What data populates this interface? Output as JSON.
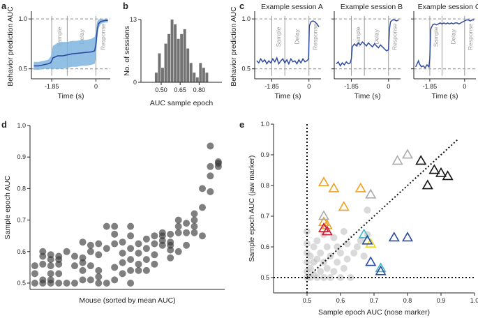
{
  "colors": {
    "blue_line": "#2f4a9c",
    "blue_band": "#7fb5df",
    "bar_gray": "#737373",
    "axis": "#222222",
    "guide_gray": "#9a9a9a",
    "dashed": "#8a8a8a",
    "orange": "#f0a020",
    "red": "#d01830",
    "cyan": "#3cb8c8",
    "yellow": "#e8d820",
    "navy": "#2a4a9c",
    "black": "#111111",
    "light_gray": "#aaaaaa",
    "mid_gray": "#888888"
  },
  "chart_data": [
    {
      "panel": "a",
      "type": "line",
      "title": "",
      "xlabel": "Time (s)",
      "ylabel": "Behavior prediction AUC",
      "xlim": [
        -2.7,
        0.6
      ],
      "ylim": [
        0.4,
        1.05
      ],
      "x_ticks": [
        -1.85,
        0
      ],
      "x_tick_labels": [
        "-1.85",
        "0"
      ],
      "y_ticks": [
        0.5,
        1.0
      ],
      "y_tick_labels": [
        "0.5",
        "1.0"
      ],
      "epoch_lines": [
        -1.85,
        -1.2,
        0
      ],
      "epoch_labels": [
        "Sample",
        "Delay",
        "Response"
      ],
      "reference_lines": [
        0.5,
        1.0
      ],
      "series": [
        {
          "name": "mean AUC",
          "x": [
            -2.6,
            -2.4,
            -2.2,
            -2.0,
            -1.9,
            -1.85,
            -1.8,
            -1.6,
            -1.4,
            -1.2,
            -1.0,
            -0.8,
            -0.6,
            -0.4,
            -0.2,
            -0.05,
            0.0,
            0.05,
            0.1,
            0.2,
            0.3,
            0.4,
            0.5
          ],
          "y": [
            0.53,
            0.53,
            0.54,
            0.55,
            0.56,
            0.58,
            0.61,
            0.63,
            0.63,
            0.64,
            0.65,
            0.655,
            0.66,
            0.665,
            0.67,
            0.68,
            0.75,
            0.88,
            0.95,
            0.975,
            0.98,
            0.985,
            0.985
          ],
          "upper": [
            0.57,
            0.57,
            0.58,
            0.59,
            0.62,
            0.66,
            0.73,
            0.76,
            0.77,
            0.77,
            0.78,
            0.78,
            0.79,
            0.79,
            0.8,
            0.82,
            0.88,
            0.97,
            0.995,
            0.998,
            0.998,
            0.998,
            0.998
          ],
          "lower": [
            0.49,
            0.49,
            0.5,
            0.5,
            0.5,
            0.5,
            0.5,
            0.5,
            0.5,
            0.51,
            0.52,
            0.52,
            0.53,
            0.53,
            0.54,
            0.55,
            0.62,
            0.79,
            0.9,
            0.95,
            0.96,
            0.965,
            0.965
          ]
        }
      ]
    },
    {
      "panel": "b",
      "type": "bar",
      "title": "",
      "xlabel": "AUC sample epoch",
      "ylabel": "No. of sessions",
      "xlim": [
        0.34,
        0.98
      ],
      "ylim": [
        0,
        13
      ],
      "x_ticks": [
        0.5,
        0.65,
        0.8
      ],
      "x_tick_labels": [
        "0.50",
        "0.65",
        "0.80"
      ],
      "y_ticks": [
        0,
        13
      ],
      "y_tick_labels": [
        "0",
        "13"
      ],
      "bin_width": 0.025,
      "bin_starts": [
        0.45,
        0.475,
        0.5,
        0.525,
        0.55,
        0.575,
        0.6,
        0.625,
        0.65,
        0.675,
        0.7,
        0.725,
        0.75,
        0.775,
        0.8,
        0.825,
        0.85
      ],
      "values": [
        2,
        6,
        3,
        8,
        10,
        13,
        12,
        9,
        10,
        11,
        7,
        4,
        2,
        1,
        4,
        3,
        2
      ]
    },
    {
      "panel": "c",
      "type": "line",
      "xlabel": "Time (s)",
      "ylabel": "Behavior prediction AUC",
      "xlim": [
        -2.7,
        0.6
      ],
      "ylim": [
        0.4,
        1.05
      ],
      "x_ticks": [
        -1.85,
        0
      ],
      "x_tick_labels": [
        "-1.85",
        "0"
      ],
      "y_ticks": [
        0.5,
        1.0
      ],
      "y_tick_labels": [
        "0.5",
        "1.0"
      ],
      "epoch_lines": [
        -1.85,
        -1.2,
        0
      ],
      "epoch_labels": [
        "Sample",
        "Delay",
        "Response"
      ],
      "reference_lines": [
        0.5,
        1.0
      ],
      "sessions": [
        {
          "title": "Example session A",
          "x": [
            -2.6,
            -2.5,
            -2.4,
            -2.3,
            -2.2,
            -2.1,
            -2.0,
            -1.9,
            -1.8,
            -1.7,
            -1.6,
            -1.5,
            -1.4,
            -1.3,
            -1.2,
            -1.1,
            -1.0,
            -0.9,
            -0.8,
            -0.7,
            -0.6,
            -0.5,
            -0.4,
            -0.3,
            -0.2,
            -0.1,
            -0.02,
            0.0,
            0.02,
            0.1,
            0.2,
            0.3,
            0.4,
            0.5
          ],
          "y": [
            0.58,
            0.56,
            0.6,
            0.57,
            0.59,
            0.55,
            0.58,
            0.56,
            0.6,
            0.57,
            0.61,
            0.55,
            0.58,
            0.6,
            0.56,
            0.59,
            0.55,
            0.6,
            0.57,
            0.58,
            0.55,
            0.59,
            0.56,
            0.6,
            0.57,
            0.58,
            0.6,
            0.75,
            0.93,
            0.97,
            0.98,
            0.97,
            0.95,
            0.92
          ]
        },
        {
          "title": "Example session B",
          "x": [
            -2.6,
            -2.5,
            -2.4,
            -2.3,
            -2.2,
            -2.1,
            -2.0,
            -1.9,
            -1.85,
            -1.8,
            -1.7,
            -1.6,
            -1.5,
            -1.4,
            -1.3,
            -1.2,
            -1.1,
            -1.0,
            -0.9,
            -0.8,
            -0.7,
            -0.6,
            -0.5,
            -0.4,
            -0.3,
            -0.2,
            -0.1,
            0.0,
            0.05,
            0.1,
            0.2,
            0.3,
            0.4,
            0.5
          ],
          "y": [
            0.55,
            0.57,
            0.53,
            0.56,
            0.54,
            0.57,
            0.55,
            0.56,
            0.6,
            0.72,
            0.75,
            0.73,
            0.76,
            0.74,
            0.77,
            0.75,
            0.73,
            0.76,
            0.74,
            0.72,
            0.75,
            0.73,
            0.71,
            0.74,
            0.72,
            0.7,
            0.68,
            0.69,
            0.9,
            0.97,
            0.99,
            0.99,
            0.98,
            0.99
          ]
        },
        {
          "title": "Example session C",
          "x": [
            -2.6,
            -2.5,
            -2.45,
            -2.4,
            -2.3,
            -2.2,
            -2.1,
            -2.0,
            -1.9,
            -1.85,
            -1.8,
            -1.7,
            -1.6,
            -1.5,
            -1.4,
            -1.3,
            -1.2,
            -1.1,
            -1.0,
            -0.9,
            -0.8,
            -0.7,
            -0.6,
            -0.5,
            -0.4,
            -0.3,
            -0.2,
            -0.1,
            0.0,
            0.1,
            0.2,
            0.3,
            0.4,
            0.5
          ],
          "y": [
            0.52,
            0.56,
            0.58,
            0.55,
            0.52,
            0.53,
            0.51,
            0.54,
            0.52,
            0.6,
            0.9,
            0.94,
            0.95,
            0.94,
            0.95,
            0.96,
            0.95,
            0.96,
            0.95,
            0.96,
            0.95,
            0.96,
            0.95,
            0.96,
            0.96,
            0.95,
            0.96,
            0.97,
            0.98,
            0.99,
            0.99,
            0.98,
            0.99,
            0.99
          ]
        }
      ]
    },
    {
      "panel": "d",
      "type": "scatter",
      "title": "",
      "xlabel": "Mouse (sorted by mean AUC)",
      "ylabel": "Sample epoch AUC",
      "xlim": [
        0.4,
        24.8
      ],
      "ylim": [
        0.48,
        1.0
      ],
      "y_ticks": [
        0.5,
        0.6,
        0.7,
        0.8,
        0.9,
        1.0
      ],
      "y_tick_labels": [
        "0.5",
        "0.6",
        "0.7",
        "0.8",
        "0.9",
        "1.0"
      ],
      "x": [
        1,
        1,
        1,
        2,
        2,
        2,
        2,
        2,
        3,
        3,
        3,
        3,
        3,
        3,
        4,
        4,
        4,
        4,
        4,
        5,
        5,
        6,
        6,
        6,
        7,
        7,
        7,
        7,
        7,
        8,
        8,
        8,
        8,
        9,
        9,
        9,
        9,
        9,
        10,
        10,
        10,
        11,
        11,
        11,
        11,
        11,
        12,
        12,
        12,
        12,
        13,
        13,
        13,
        13,
        13,
        13,
        14,
        14,
        14,
        14,
        15,
        15,
        15,
        15,
        16,
        16,
        16,
        16,
        17,
        17,
        17,
        17,
        18,
        18,
        18,
        18,
        18,
        19,
        19,
        19,
        19,
        20,
        20,
        20,
        21,
        21,
        21,
        21,
        22,
        22,
        22,
        23,
        23,
        23,
        23,
        24,
        24,
        24
      ],
      "y": [
        0.5,
        0.53,
        0.555,
        0.5,
        0.51,
        0.56,
        0.585,
        0.6,
        0.5,
        0.51,
        0.53,
        0.555,
        0.575,
        0.59,
        0.5,
        0.53,
        0.56,
        0.575,
        0.585,
        0.5,
        0.6,
        0.5,
        0.555,
        0.585,
        0.51,
        0.54,
        0.565,
        0.58,
        0.63,
        0.51,
        0.555,
        0.6,
        0.62,
        0.5,
        0.52,
        0.54,
        0.59,
        0.625,
        0.5,
        0.61,
        0.68,
        0.51,
        0.55,
        0.625,
        0.655,
        0.68,
        0.53,
        0.565,
        0.595,
        0.63,
        0.5,
        0.54,
        0.575,
        0.61,
        0.65,
        0.68,
        0.54,
        0.56,
        0.595,
        0.625,
        0.54,
        0.575,
        0.61,
        0.64,
        0.56,
        0.59,
        0.625,
        0.65,
        0.62,
        0.635,
        0.65,
        0.66,
        0.58,
        0.605,
        0.62,
        0.63,
        0.655,
        0.6,
        0.66,
        0.68,
        0.7,
        0.62,
        0.66,
        0.69,
        0.66,
        0.68,
        0.7,
        0.72,
        0.65,
        0.74,
        0.8,
        0.79,
        0.84,
        0.87,
        0.935,
        0.87,
        0.88,
        0.885
      ]
    },
    {
      "panel": "e",
      "type": "scatter",
      "title": "",
      "xlabel": "Sample epoch AUC (nose marker)",
      "ylabel": "Sample epoch AUC (jaw marker)",
      "xlim": [
        0.4,
        1.0
      ],
      "ylim": [
        0.45,
        1.0
      ],
      "x_ticks": [
        0.5,
        0.6,
        0.7,
        0.8,
        0.9,
        1.0
      ],
      "x_tick_labels": [
        "0.5",
        "0.6",
        "0.7",
        "0.8",
        "0.9",
        "1.0"
      ],
      "y_ticks": [
        0.5,
        0.6,
        0.7,
        0.8,
        0.9,
        1.0
      ],
      "y_tick_labels": [
        "0.5",
        "0.6",
        "0.7",
        "0.8",
        "0.9",
        "1.0"
      ],
      "reference_lines": {
        "vertical_x": 0.5,
        "horizontal_y": 0.5,
        "diagonal": [
          0.5,
          0.95
        ]
      },
      "gray_points": {
        "x": [
          0.5,
          0.5,
          0.5,
          0.5,
          0.5,
          0.5,
          0.51,
          0.51,
          0.51,
          0.52,
          0.52,
          0.52,
          0.53,
          0.53,
          0.53,
          0.54,
          0.54,
          0.55,
          0.55,
          0.55,
          0.56,
          0.56,
          0.57,
          0.57,
          0.58,
          0.58,
          0.59,
          0.59,
          0.6,
          0.6,
          0.61,
          0.61,
          0.62,
          0.62,
          0.63,
          0.64,
          0.65,
          0.66,
          0.67,
          0.68,
          0.68
        ],
        "y": [
          0.5,
          0.52,
          0.55,
          0.58,
          0.61,
          0.65,
          0.5,
          0.53,
          0.57,
          0.51,
          0.55,
          0.6,
          0.5,
          0.56,
          0.62,
          0.52,
          0.58,
          0.5,
          0.55,
          0.64,
          0.53,
          0.6,
          0.5,
          0.57,
          0.52,
          0.63,
          0.55,
          0.6,
          0.5,
          0.58,
          0.53,
          0.65,
          0.56,
          0.61,
          0.5,
          0.58,
          0.6,
          0.62,
          0.57,
          0.64,
          0.72
        ]
      },
      "triangles": [
        {
          "color": "orange",
          "points": [
            [
              0.55,
              0.81
            ],
            [
              0.58,
              0.79
            ],
            [
              0.61,
              0.73
            ],
            [
              0.66,
              0.79
            ],
            [
              0.55,
              0.68
            ],
            [
              0.56,
              0.67
            ]
          ]
        },
        {
          "color": "red",
          "points": [
            [
              0.55,
              0.66
            ],
            [
              0.56,
              0.65
            ]
          ]
        },
        {
          "color": "cyan",
          "points": [
            [
              0.67,
              0.64
            ],
            [
              0.72,
              0.53
            ]
          ]
        },
        {
          "color": "yellow",
          "points": [
            [
              0.69,
              0.61
            ]
          ]
        },
        {
          "color": "navy",
          "points": [
            [
              0.68,
              0.62
            ],
            [
              0.69,
              0.55
            ],
            [
              0.72,
              0.52
            ],
            [
              0.76,
              0.63
            ],
            [
              0.8,
              0.63
            ]
          ]
        },
        {
          "color": "light_gray",
          "points": [
            [
              0.55,
              0.7
            ],
            [
              0.69,
              0.77
            ],
            [
              0.77,
              0.88
            ],
            [
              0.8,
              0.9
            ]
          ]
        },
        {
          "color": "black",
          "points": [
            [
              0.84,
              0.88
            ],
            [
              0.86,
              0.8
            ],
            [
              0.88,
              0.85
            ],
            [
              0.9,
              0.84
            ],
            [
              0.92,
              0.83
            ]
          ]
        }
      ]
    }
  ],
  "figure": {
    "panel_letters": [
      "a",
      "b",
      "c",
      "d",
      "e"
    ]
  }
}
